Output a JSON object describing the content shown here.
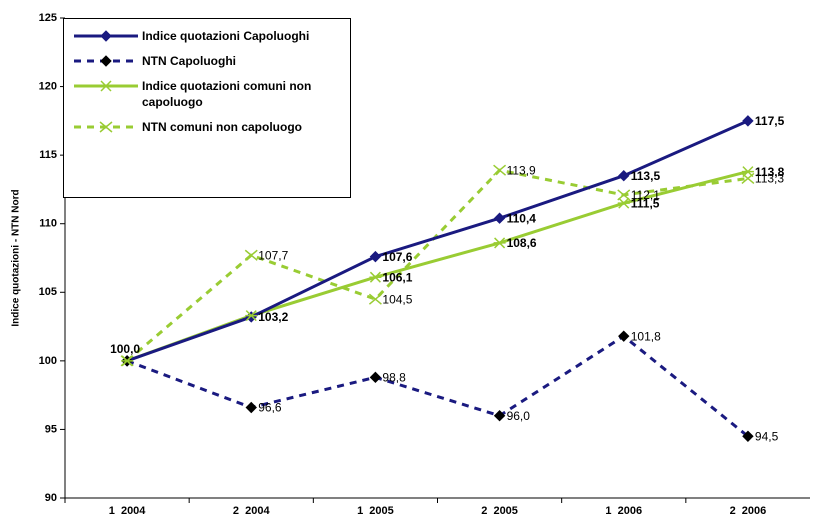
{
  "chart_data": {
    "type": "line",
    "y_label": "Indice quotazioni - NTN Nord",
    "categories": [
      "1  2004",
      "2  2004",
      "1  2005",
      "2  2005",
      "1  2006",
      "2  2006"
    ],
    "ylim": [
      90,
      125
    ],
    "yticks": [
      90,
      95,
      100,
      105,
      110,
      115,
      120,
      125
    ],
    "legend": "top-left",
    "series": [
      {
        "name": "Indice quotazioni Capoluoghi",
        "color": "#1a1a80",
        "marker_color": "#1a1a80",
        "dashed": false,
        "marker": "diamond",
        "bold_labels": true,
        "values": [
          100.0,
          103.2,
          107.6,
          110.4,
          113.5,
          117.5
        ],
        "value_labels": [
          "100,0",
          "103,2",
          "107,6",
          "110,4",
          "113,5",
          "117,5"
        ]
      },
      {
        "name": "NTN Capoluoghi",
        "color": "#1a1a80",
        "marker_color": "#000000",
        "dashed": true,
        "marker": "diamond",
        "bold_labels": false,
        "values": [
          100.0,
          96.6,
          98.8,
          96.0,
          101.8,
          94.5
        ],
        "value_labels": [
          null,
          "96,6",
          "98,8",
          "96,0",
          "101,8",
          "94,5"
        ]
      },
      {
        "name": "Indice quotazioni comuni non capoluogo",
        "color": "#99cc33",
        "marker_color": "#99cc33",
        "dashed": false,
        "marker": "star",
        "bold_labels": true,
        "values": [
          100.0,
          103.3,
          106.1,
          108.6,
          111.5,
          113.8
        ],
        "value_labels": [
          null,
          null,
          "106,1",
          "108,6",
          "111,5",
          "113,8"
        ]
      },
      {
        "name": "NTN comuni non capoluogo",
        "color": "#99cc33",
        "marker_color": "#99cc33",
        "dashed": true,
        "marker": "x",
        "bold_labels": false,
        "values": [
          100.0,
          107.7,
          104.5,
          113.9,
          112.1,
          113.3
        ],
        "value_labels": [
          null,
          "107,7",
          "104,5",
          "113,9",
          "112,1",
          "113,3"
        ]
      }
    ]
  }
}
